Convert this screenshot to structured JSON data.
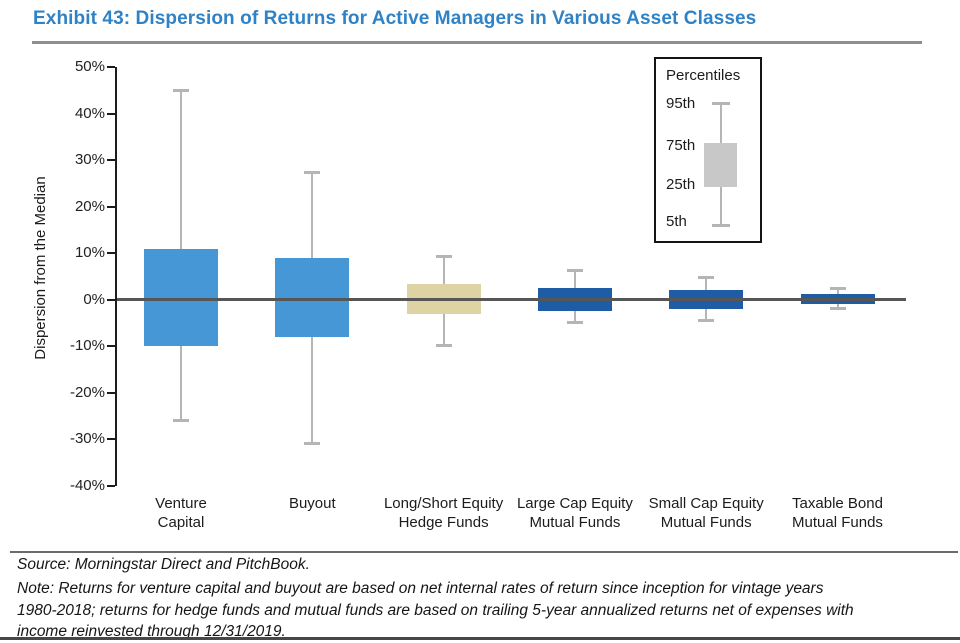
{
  "title": "Exhibit 43: Dispersion of Returns for Active Managers in Various Asset Classes",
  "chart_data": {
    "type": "boxplot",
    "title": "Exhibit 43: Dispersion of Returns for Active Managers in Various Asset Classes",
    "ylabel": "Dispersion from the Median",
    "ylim": [
      -40,
      50
    ],
    "yticks": [
      50,
      40,
      30,
      20,
      10,
      0,
      -10,
      -20,
      -30,
      -40
    ],
    "ytick_suffix": "%",
    "grid": "off",
    "zero_line": true,
    "legend": {
      "position": "top-right",
      "title": "Percentiles",
      "labels": [
        "95th",
        "75th",
        "25th",
        "5th"
      ]
    },
    "categories": [
      "Venture Capital",
      "Buyout",
      "Long/Short Equity Hedge Funds",
      "Large Cap Equity Mutual Funds",
      "Small Cap Equity Mutual Funds",
      "Taxable Bond Mutual Funds"
    ],
    "category_lines": [
      [
        "Venture",
        "Capital"
      ],
      [
        "Buyout"
      ],
      [
        "Long/Short Equity",
        "Hedge Funds"
      ],
      [
        "Large Cap Equity",
        "Mutual Funds"
      ],
      [
        "Small Cap Equity",
        "Mutual Funds"
      ],
      [
        "Taxable Bond",
        "Mutual Funds"
      ]
    ],
    "series": [
      {
        "name": "Venture Capital",
        "p95": 45,
        "p75": 11,
        "p25": -10,
        "p5": -26,
        "color": "#4598d5"
      },
      {
        "name": "Buyout",
        "p95": 27.5,
        "p75": 9,
        "p25": -8,
        "p5": -31,
        "color": "#4598d5"
      },
      {
        "name": "Long/Short Equity Hedge Funds",
        "p95": 9.5,
        "p75": 3.5,
        "p25": -3,
        "p5": -10,
        "color": "#ddd3a3"
      },
      {
        "name": "Large Cap Equity Mutual Funds",
        "p95": 6.5,
        "p75": 2.5,
        "p25": -2.5,
        "p5": -5,
        "color": "#1e5ca5"
      },
      {
        "name": "Small Cap Equity Mutual Funds",
        "p95": 5,
        "p75": 2.2,
        "p25": -2,
        "p5": -4.5,
        "color": "#1e5ca5"
      },
      {
        "name": "Taxable Bond Mutual Funds",
        "p95": 2.5,
        "p75": 1.2,
        "p25": -1,
        "p5": -2,
        "color": "#1e5ca5"
      }
    ],
    "colors": {
      "light_blue": "#4598d5",
      "tan": "#ddd3a3",
      "dark_blue": "#1e5ca5",
      "whisker_gray": "#b5b5b5",
      "legend_box_gray": "#c8c8c8",
      "zero_line": "#565656",
      "axis": "#1c1c1c",
      "title_blue": "#2f82c6"
    }
  },
  "footer": {
    "source": "Source: Morningstar Direct and PitchBook.",
    "note_lines": [
      "Note: Returns for venture capital and buyout are based on net internal rates of return since inception for vintage years",
      "1980-2018; returns for hedge funds and mutual funds are based on trailing 5-year annualized returns net of expenses with",
      "income reinvested through 12/31/2019."
    ]
  }
}
